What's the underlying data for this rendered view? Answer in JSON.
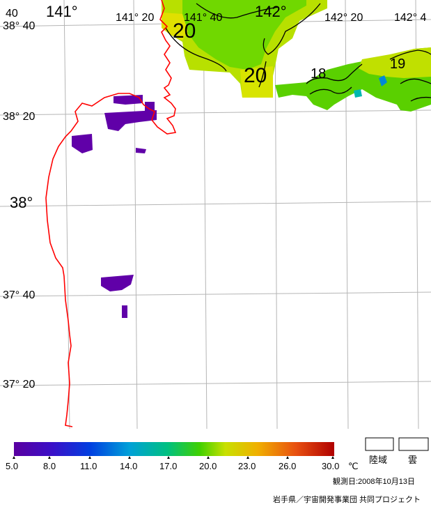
{
  "map": {
    "lon_labels": [
      "141°",
      "141° 20",
      "141° 40",
      "142°",
      "142° 20",
      "142° 4"
    ],
    "lat_labels": [
      "38° 40",
      "38° 20",
      "38°",
      "37° 40",
      "37° 20"
    ],
    "corner_fragment": "40",
    "contour_labels": [
      "20",
      "20",
      "18",
      "19"
    ]
  },
  "legend": {
    "ticks": [
      "5.0",
      "8.0",
      "11.0",
      "14.0",
      "17.0",
      "20.0",
      "23.0",
      "26.0",
      "30.0"
    ],
    "unit": "℃",
    "land_label": "陸域",
    "cloud_label": "雲",
    "colors": [
      "#5a00a0",
      "#2a1ad0",
      "#0050e0",
      "#00a8d0",
      "#00c070",
      "#60d000",
      "#d0e000",
      "#f0a000",
      "#e04000",
      "#b00000"
    ]
  },
  "footer": {
    "observation_date": "観測日:2008年10月13日",
    "credit": "岩手県／宇宙開発事業団 共同プロジェクト"
  },
  "style": {
    "coast_color": "#ff0000",
    "grid_color": "#b5b5b5"
  }
}
